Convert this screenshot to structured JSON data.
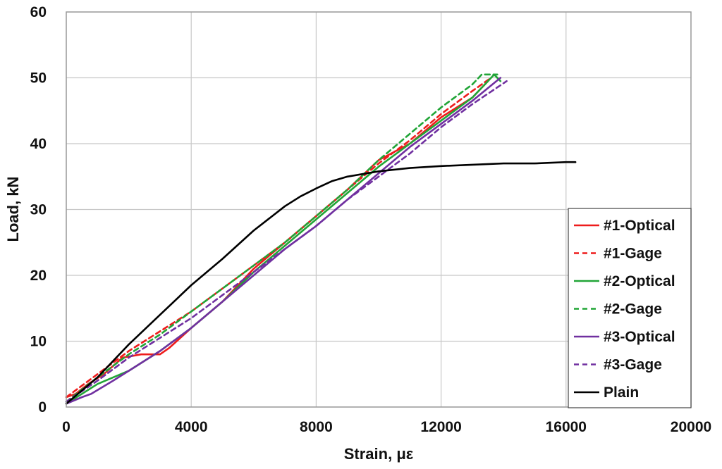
{
  "chart_data": {
    "type": "line",
    "xlabel": "Strain, με",
    "ylabel": "Load, kN",
    "xlim": [
      0,
      20000
    ],
    "ylim": [
      0,
      60
    ],
    "xticks": [
      "0",
      "4000",
      "8000",
      "12000",
      "16000",
      "20000"
    ],
    "yticks": [
      "0",
      "10",
      "20",
      "30",
      "40",
      "50",
      "60"
    ],
    "grid": true,
    "legend_position": "right",
    "series": [
      {
        "name": "#1-Optical",
        "color": "#ee1c1c",
        "dash": "solid",
        "x": [
          0,
          300,
          700,
          1200,
          1800,
          2400,
          3000,
          3300,
          4000,
          5000,
          6000,
          7000,
          8000,
          9000,
          10000,
          11000,
          12000,
          13000,
          13500
        ],
        "y": [
          1.5,
          2,
          3.5,
          5,
          7.5,
          8,
          8,
          9,
          12,
          16,
          21,
          25,
          29,
          33,
          37.5,
          40,
          44,
          47,
          49.5
        ]
      },
      {
        "name": "#1-Gage",
        "color": "#ee1c1c",
        "dash": "dashed",
        "x": [
          0,
          1000,
          2000,
          3000,
          4000,
          5000,
          6000,
          7000,
          8000,
          9000,
          10000,
          11000,
          12000,
          13000,
          13600
        ],
        "y": [
          1.5,
          5,
          8.5,
          11.5,
          14.5,
          18,
          21.5,
          25,
          29,
          33,
          37,
          40.5,
          44.5,
          48,
          50
        ]
      },
      {
        "name": "#2-Optical",
        "color": "#21a537",
        "dash": "solid",
        "x": [
          0,
          500,
          1000,
          1500,
          2000,
          2500,
          3000,
          4000,
          5000,
          6000,
          7000,
          8000,
          9000,
          10000,
          11000,
          12000,
          13000,
          13700,
          13900
        ],
        "y": [
          0.5,
          2,
          3.5,
          4.5,
          5.5,
          7,
          8.5,
          12,
          16,
          20.5,
          24.5,
          28.5,
          32.5,
          36.5,
          40,
          43.5,
          47,
          50.5,
          49.5
        ]
      },
      {
        "name": "#2-Gage",
        "color": "#21a537",
        "dash": "dashed",
        "x": [
          0,
          1000,
          2000,
          3000,
          4000,
          5000,
          6000,
          7000,
          8000,
          9000,
          10000,
          11000,
          12000,
          13000,
          13300,
          13800
        ],
        "y": [
          0.8,
          4.5,
          8,
          11,
          14.5,
          18,
          21.5,
          25,
          29,
          33,
          37.5,
          41.5,
          45.5,
          49,
          50.5,
          50.5
        ]
      },
      {
        "name": "#3-Optical",
        "color": "#7030a0",
        "dash": "solid",
        "x": [
          0,
          500,
          800,
          1500,
          2000,
          2500,
          3000,
          4000,
          5000,
          6000,
          7000,
          8000,
          9000,
          10000,
          11000,
          12000,
          13000,
          13900
        ],
        "y": [
          0.5,
          1.5,
          2,
          4,
          5.5,
          7,
          8.5,
          12,
          16,
          20,
          24,
          27.5,
          31.5,
          35.5,
          39.5,
          43,
          46.5,
          50
        ]
      },
      {
        "name": "#3-Gage",
        "color": "#7030a0",
        "dash": "dashed",
        "x": [
          0,
          1000,
          2000,
          3000,
          4000,
          5000,
          6000,
          7000,
          8000,
          9000,
          10000,
          11000,
          12000,
          13000,
          14100
        ],
        "y": [
          0.8,
          4,
          7.5,
          10.5,
          13.5,
          17,
          20.5,
          24,
          27.5,
          31.5,
          35,
          38.5,
          42.5,
          46,
          49.5
        ]
      },
      {
        "name": "Plain",
        "color": "#000000",
        "dash": "solid",
        "x": [
          0,
          1000,
          2000,
          3000,
          4000,
          5000,
          6000,
          7000,
          7500,
          8000,
          8500,
          9000,
          10000,
          11000,
          12000,
          13000,
          14000,
          15000,
          16000,
          16300
        ],
        "y": [
          0.5,
          4.5,
          9.5,
          14,
          18.5,
          22.5,
          26.8,
          30.5,
          32,
          33.2,
          34.3,
          35,
          35.8,
          36.3,
          36.6,
          36.8,
          37,
          37,
          37.2,
          37.2
        ]
      }
    ]
  }
}
